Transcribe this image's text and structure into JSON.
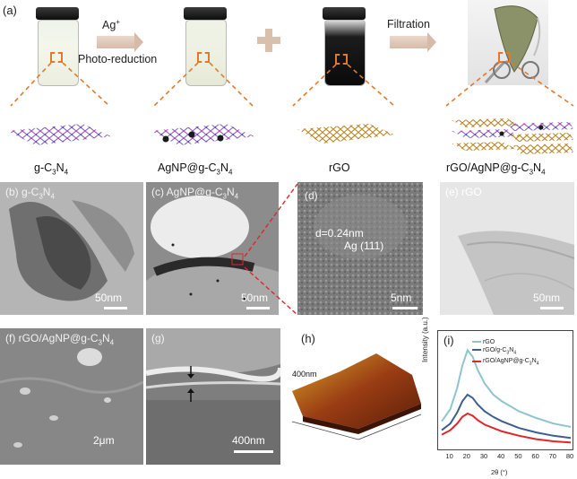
{
  "figure": {
    "panel_a": {
      "label": "(a)",
      "step1_top": "Ag",
      "step1_sup": "+",
      "step1_bottom": "Photo-reduction",
      "step2": "Filtration",
      "materials": [
        {
          "main": "g-C",
          "sub1": "3",
          "mid": "N",
          "sub2": "4"
        },
        {
          "main": "AgNP@g-C",
          "sub1": "3",
          "mid": "N",
          "sub2": "4"
        },
        {
          "main": "rGO",
          "sub1": "",
          "mid": "",
          "sub2": ""
        },
        {
          "main": "rGO/AgNP@g-C",
          "sub1": "3",
          "mid": "N",
          "sub2": "4"
        }
      ]
    },
    "panel_b": {
      "label": "(b) g-C",
      "sub1": "3",
      "mid": "N",
      "sub2": "4",
      "scale": "50nm"
    },
    "panel_c": {
      "label": "(c) AgNP@g-C",
      "sub1": "3",
      "mid": "N",
      "sub2": "4",
      "scale": "50nm"
    },
    "panel_d": {
      "label": "(d)",
      "spacing": "d=0.24nm",
      "plane": "Ag (111)",
      "scale": "5nm"
    },
    "panel_e": {
      "label": "(e) rGO",
      "scale": "50nm"
    },
    "panel_f": {
      "label": "(f) rGO/AgNP@g-C",
      "sub1": "3",
      "mid": "N",
      "sub2": "4",
      "scale": "2μm"
    },
    "panel_g": {
      "label": "(g)",
      "scale": "400nm"
    },
    "panel_h": {
      "label": "(h)",
      "zlabel": "400nm"
    },
    "panel_i": {
      "label": "(i)"
    }
  },
  "colors": {
    "accent_orange": "#e07a2e",
    "rgo_line": "#8fc4cc",
    "composite_blue_line": "#3d5f8f",
    "composite_red_line": "#e0262a"
  },
  "chart_data": {
    "type": "line",
    "title": "(i)",
    "xlabel": "2θ (°)",
    "ylabel": "Intensity (a.u.)",
    "xlim": [
      5,
      80
    ],
    "x_ticks": [
      10,
      20,
      30,
      40,
      50,
      60,
      70,
      80
    ],
    "legend_position": "top-left",
    "y_ticks_shown": false,
    "series": [
      {
        "name": "rGO",
        "legend_main": "rGO",
        "legend_sub1": "",
        "legend_mid": "",
        "legend_sub2": "",
        "color": "#8fc4cc",
        "x": [
          5,
          10,
          14,
          17,
          20,
          23,
          26,
          30,
          35,
          40,
          50,
          60,
          70,
          80
        ],
        "y": [
          0.22,
          0.33,
          0.52,
          0.72,
          0.86,
          0.8,
          0.68,
          0.56,
          0.46,
          0.4,
          0.31,
          0.25,
          0.2,
          0.17
        ]
      },
      {
        "name": "rGO/g-C3N4",
        "legend_main": "rGO/g-C",
        "legend_sub1": "3",
        "legend_mid": "N",
        "legend_sub2": "4",
        "color": "#3d5f8f",
        "x": [
          5,
          10,
          14,
          17,
          20,
          23,
          26,
          30,
          35,
          40,
          50,
          60,
          70,
          80
        ],
        "y": [
          0.14,
          0.2,
          0.3,
          0.4,
          0.46,
          0.43,
          0.37,
          0.31,
          0.26,
          0.22,
          0.16,
          0.12,
          0.09,
          0.07
        ]
      },
      {
        "name": "rGO/AgNP@g-C3N4",
        "legend_main": "rGO/AgNP@g-C",
        "legend_sub1": "3",
        "legend_mid": "N",
        "legend_sub2": "4",
        "color": "#e0262a",
        "x": [
          5,
          10,
          14,
          17,
          20,
          23,
          26,
          30,
          35,
          40,
          50,
          60,
          70,
          80
        ],
        "y": [
          0.1,
          0.14,
          0.2,
          0.26,
          0.29,
          0.27,
          0.23,
          0.19,
          0.16,
          0.13,
          0.09,
          0.06,
          0.04,
          0.03
        ]
      }
    ]
  }
}
